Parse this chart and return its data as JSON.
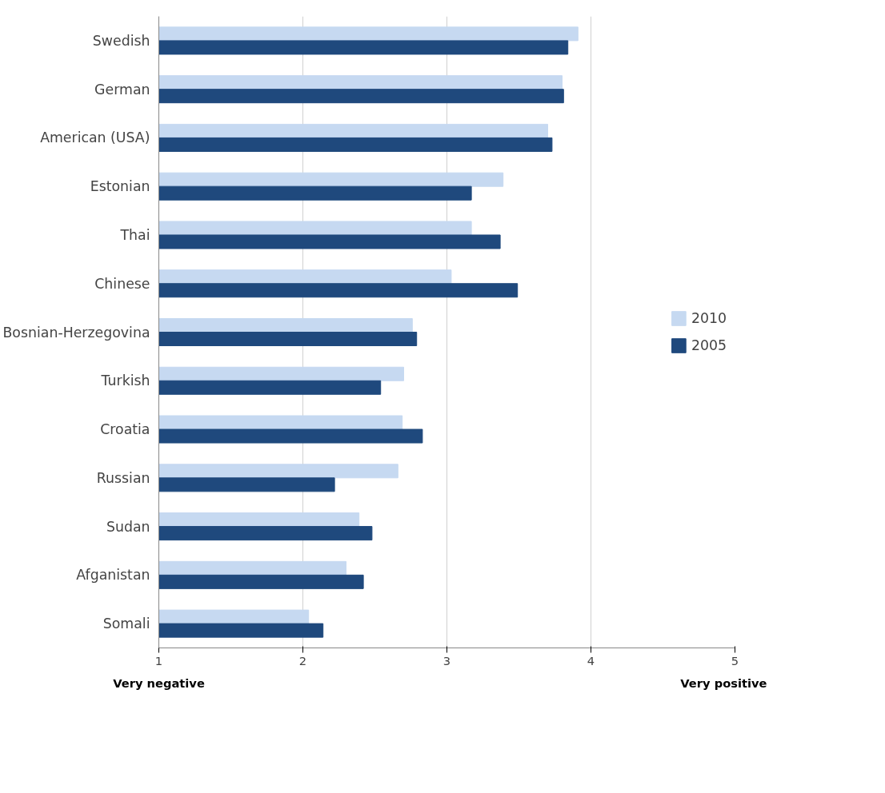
{
  "chart_data": {
    "type": "bar",
    "orientation": "horizontal",
    "categories": [
      "Swedish",
      "German",
      "American (USA)",
      "Estonian",
      "Thai",
      "Chinese",
      "Bosnian-Herzegovina",
      "Turkish",
      "Croatia",
      "Russian",
      "Sudan",
      "Afganistan",
      "Somali"
    ],
    "series": [
      {
        "name": "2010",
        "color": "#c6d9f1",
        "values": [
          3.91,
          3.8,
          3.7,
          3.39,
          3.17,
          3.03,
          2.76,
          2.7,
          2.69,
          2.66,
          2.39,
          2.3,
          2.04
        ]
      },
      {
        "name": "2005",
        "color": "#1f497d",
        "values": [
          3.84,
          3.81,
          3.73,
          3.17,
          3.37,
          3.49,
          2.79,
          2.54,
          2.83,
          2.22,
          2.48,
          2.42,
          2.14
        ]
      }
    ],
    "xlim": [
      1,
      5
    ],
    "xticks": [
      1,
      2,
      3,
      4,
      5
    ],
    "grid": "x",
    "legend": "right",
    "annotations": [
      "Very negative",
      "Very positive"
    ]
  }
}
